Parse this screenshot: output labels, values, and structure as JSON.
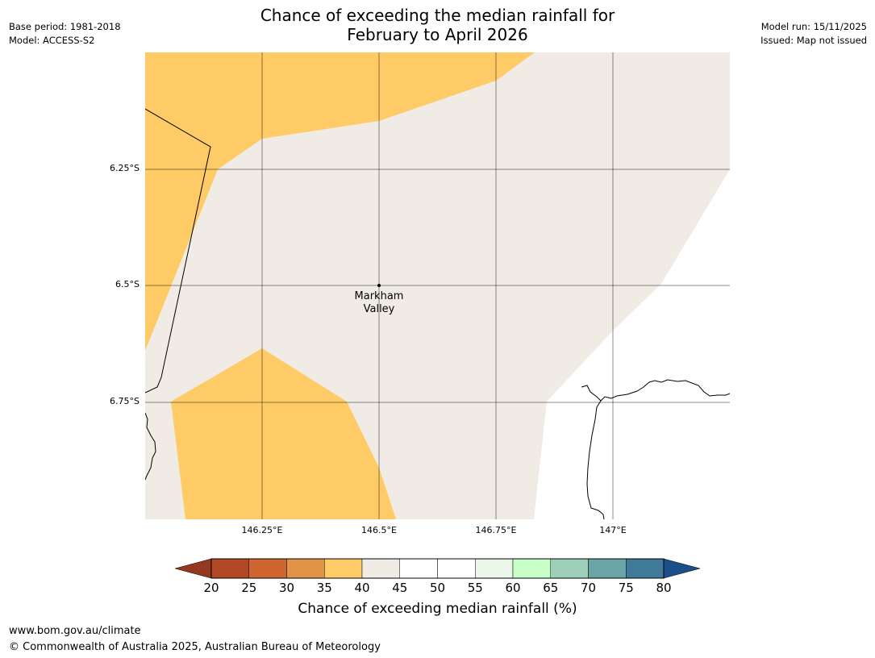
{
  "header": {
    "title_line1": "Chance of exceeding the median rainfall for",
    "title_line2": "February to April 2026",
    "base_period": "Base period: 1981-2018",
    "model": "Model: ACCESS-S2",
    "model_run": "Model run: 15/11/2025",
    "issued": "Issued: Map not issued"
  },
  "map": {
    "latitude_labels": [
      "6.25°S",
      "6.5°S",
      "6.75°S"
    ],
    "longitude_labels": [
      "146.25°E",
      "146.5°E",
      "146.75°E",
      "147°E"
    ],
    "place": {
      "name_line1": "Markham",
      "name_line2": "Valley"
    },
    "colors": {
      "band_35_40": "#fecb66",
      "band_40_45": "#f0ebe5",
      "land_no_data": "#ffffff"
    }
  },
  "colorbar": {
    "ticks": [
      "20",
      "25",
      "30",
      "35",
      "40",
      "45",
      "50",
      "55",
      "60",
      "65",
      "70",
      "75",
      "80"
    ],
    "colors": [
      "#b14826",
      "#cf6530",
      "#e19448",
      "#fecb66",
      "#f0ebe5",
      "#ffffff",
      "#ffffff",
      "#eaf6e9",
      "#c8ffc8",
      "#9ecfb8",
      "#6ba4a6",
      "#417998"
    ],
    "low_extend_color": "#93391f",
    "high_extend_color": "#1b4f8a",
    "label": "Chance of exceeding median rainfall (%)"
  },
  "footer": {
    "url": "www.bom.gov.au/climate",
    "copyright": "© Commonwealth of Australia 2025, Australian Bureau of Meteorology"
  }
}
